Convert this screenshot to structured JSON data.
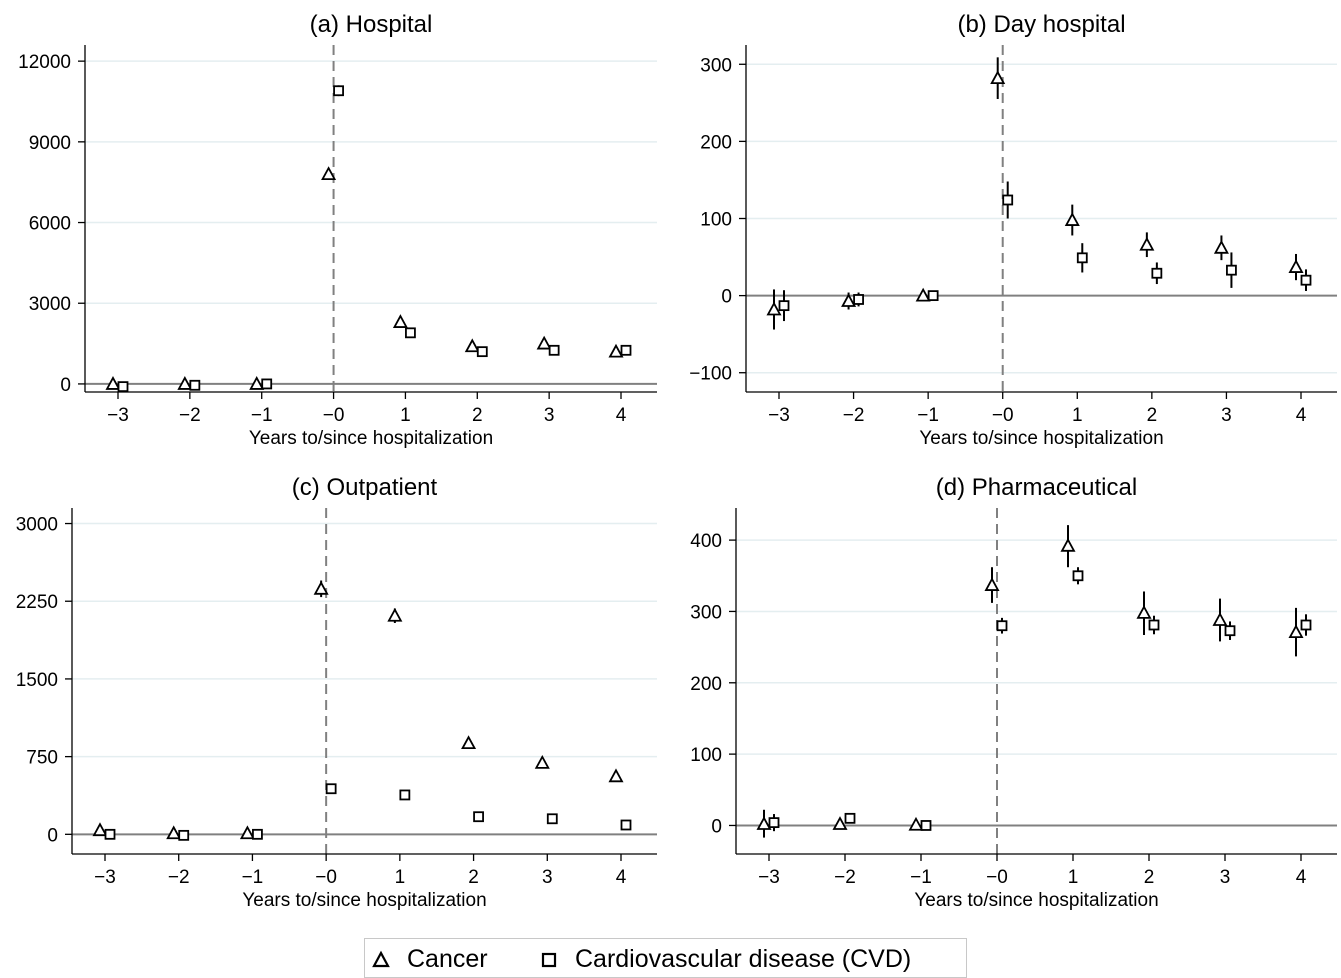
{
  "chart_data": [
    {
      "type": "scatter",
      "title": "(a) Hospital",
      "xlabel": "Years to/since hospitalization",
      "ylabel": "",
      "ylim": [
        -300,
        12600
      ],
      "yticks": [
        0,
        3000,
        6000,
        9000,
        12000
      ],
      "ytick_labels": [
        "0",
        "3000",
        "6000",
        "9000",
        "12000"
      ],
      "xticks": [
        -3,
        -2,
        -1,
        0,
        1,
        2,
        3,
        4
      ],
      "xtick_labels": [
        "−3",
        "−2",
        "−1",
        "−0",
        "1",
        "2",
        "3",
        "4"
      ],
      "series": [
        {
          "name": "Cancer",
          "marker": "triangle",
          "x": [
            -3,
            -2,
            -1,
            0,
            1,
            2,
            3,
            4
          ],
          "y": [
            0,
            0,
            0,
            7800,
            2300,
            1400,
            1500,
            1200
          ],
          "ci_low": [
            null,
            null,
            null,
            7700,
            2200,
            1300,
            1400,
            1100
          ],
          "ci_high": [
            null,
            null,
            null,
            7900,
            2400,
            1500,
            1600,
            1300
          ]
        },
        {
          "name": "Cardiovascular disease (CVD)",
          "marker": "square",
          "x": [
            -3,
            -2,
            -1,
            0,
            1,
            2,
            3,
            4
          ],
          "y": [
            -100,
            -50,
            0,
            10900,
            1900,
            1200,
            1250,
            1250
          ],
          "ci_low": [
            null,
            null,
            null,
            10700,
            1800,
            1100,
            1150,
            1150
          ],
          "ci_high": [
            null,
            null,
            null,
            11100,
            2000,
            1300,
            1350,
            1350
          ]
        }
      ]
    },
    {
      "type": "scatter",
      "title": "(b) Day hospital",
      "xlabel": "Years to/since hospitalization",
      "ylabel": "",
      "ylim": [
        -125,
        325
      ],
      "yticks": [
        -100,
        0,
        100,
        200,
        300
      ],
      "ytick_labels": [
        "−100",
        "0",
        "100",
        "200",
        "300"
      ],
      "xticks": [
        -3,
        -2,
        -1,
        0,
        1,
        2,
        3,
        4
      ],
      "xtick_labels": [
        "−3",
        "−2",
        "−1",
        "−0",
        "1",
        "2",
        "3",
        "4"
      ],
      "series": [
        {
          "name": "Cancer",
          "marker": "triangle",
          "x": [
            -3,
            -2,
            -1,
            0,
            1,
            2,
            3,
            4
          ],
          "y": [
            -18,
            -7,
            0,
            282,
            98,
            66,
            62,
            37
          ],
          "ci_low": [
            -44,
            -18,
            null,
            255,
            78,
            50,
            46,
            20
          ],
          "ci_high": [
            8,
            4,
            null,
            309,
            118,
            82,
            78,
            54
          ]
        },
        {
          "name": "Cardiovascular disease (CVD)",
          "marker": "square",
          "x": [
            -3,
            -2,
            -1,
            0,
            1,
            2,
            3,
            4
          ],
          "y": [
            -13,
            -5,
            0,
            124,
            49,
            29,
            33,
            20
          ],
          "ci_low": [
            -33,
            -14,
            null,
            100,
            30,
            15,
            10,
            6
          ],
          "ci_high": [
            7,
            4,
            null,
            148,
            68,
            43,
            56,
            34
          ]
        }
      ]
    },
    {
      "type": "scatter",
      "title": "(c) Outpatient",
      "xlabel": "Years to/since hospitalization",
      "ylabel": "",
      "ylim": [
        -190,
        3150
      ],
      "yticks": [
        0,
        750,
        1500,
        2250,
        3000
      ],
      "ytick_labels": [
        "0",
        "750",
        "1500",
        "2250",
        "3000"
      ],
      "xticks": [
        -3,
        -2,
        -1,
        0,
        1,
        2,
        3,
        4
      ],
      "xtick_labels": [
        "−3",
        "−2",
        "−1",
        "−0",
        "1",
        "2",
        "3",
        "4"
      ],
      "series": [
        {
          "name": "Cancer",
          "marker": "triangle",
          "x": [
            -3,
            -2,
            -1,
            0,
            1,
            2,
            3,
            4
          ],
          "y": [
            40,
            10,
            10,
            2370,
            2110,
            880,
            690,
            560
          ],
          "ci_low": [
            null,
            null,
            null,
            2290,
            2040,
            830,
            650,
            520
          ],
          "ci_high": [
            null,
            null,
            null,
            2450,
            2180,
            930,
            730,
            600
          ]
        },
        {
          "name": "Cardiovascular disease (CVD)",
          "marker": "square",
          "x": [
            -3,
            -2,
            -1,
            0,
            1,
            2,
            3,
            4
          ],
          "y": [
            0,
            -10,
            0,
            440,
            380,
            170,
            150,
            90
          ],
          "ci_low": [
            null,
            null,
            null,
            null,
            null,
            null,
            null,
            null
          ],
          "ci_high": [
            null,
            null,
            null,
            null,
            null,
            null,
            null,
            null
          ]
        }
      ]
    },
    {
      "type": "scatter",
      "title": "(d) Pharmaceutical",
      "xlabel": "Years to/since hospitalization",
      "ylabel": "",
      "ylim": [
        -40,
        445
      ],
      "yticks": [
        0,
        100,
        200,
        300,
        400
      ],
      "ytick_labels": [
        "0",
        "100",
        "200",
        "300",
        "400"
      ],
      "xticks": [
        -3,
        -2,
        -1,
        0,
        1,
        2,
        3,
        4
      ],
      "xtick_labels": [
        "−3",
        "−2",
        "−1",
        "−0",
        "1",
        "2",
        "3",
        "4"
      ],
      "series": [
        {
          "name": "Cancer",
          "marker": "triangle",
          "x": [
            -3,
            -2,
            -1,
            0,
            1,
            2,
            3,
            4
          ],
          "y": [
            2,
            2,
            1,
            337,
            392,
            298,
            288,
            271
          ],
          "ci_low": [
            -17,
            -5,
            null,
            312,
            362,
            267,
            258,
            237
          ],
          "ci_high": [
            22,
            9,
            null,
            362,
            421,
            328,
            318,
            305
          ]
        },
        {
          "name": "Cardiovascular disease (CVD)",
          "marker": "square",
          "x": [
            -3,
            -2,
            -1,
            0,
            1,
            2,
            3,
            4
          ],
          "y": [
            4,
            10,
            0,
            280,
            350,
            281,
            273,
            281
          ],
          "ci_low": [
            -8,
            4,
            null,
            269,
            338,
            268,
            260,
            266
          ],
          "ci_high": [
            16,
            16,
            null,
            291,
            362,
            294,
            286,
            296
          ]
        }
      ]
    }
  ],
  "legend": {
    "items": [
      {
        "label": "Cancer",
        "marker": "triangle"
      },
      {
        "label": "Cardiovascular disease (CVD)",
        "marker": "square"
      }
    ]
  },
  "colors": {
    "marker": "#000000",
    "zero_line": "#808080",
    "event_line": "#808080",
    "gridline": "#e4eef0",
    "axis": "#000000"
  }
}
